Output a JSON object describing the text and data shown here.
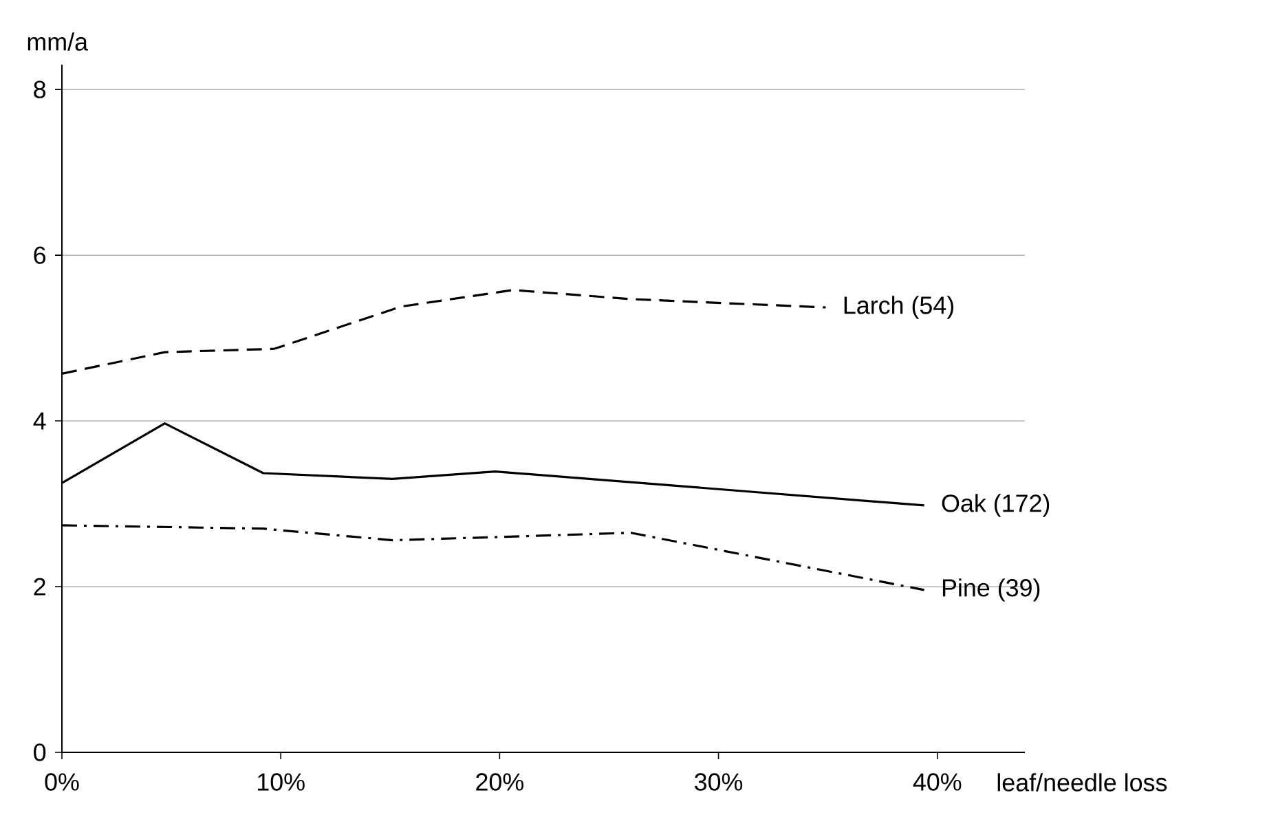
{
  "chart_data": {
    "type": "line",
    "xlabel": "leaf/needle loss",
    "ylabel": "mm/a",
    "xlim": [
      0,
      44
    ],
    "ylim": [
      0,
      8.3
    ],
    "xticks": [
      {
        "value": 0,
        "label": "0%"
      },
      {
        "value": 10,
        "label": "10%"
      },
      {
        "value": 20,
        "label": "20%"
      },
      {
        "value": 30,
        "label": "30%"
      },
      {
        "value": 40,
        "label": "40%"
      }
    ],
    "yticks": [
      0,
      2,
      4,
      6,
      8
    ],
    "grid": "y",
    "series": [
      {
        "name": "Larch (54)",
        "color": "#000000",
        "line_style": "dashed",
        "x": [
          0,
          4.7,
          9.7,
          15.5,
          20.6,
          26,
          34.9
        ],
        "values": [
          4.57,
          4.83,
          4.87,
          5.38,
          5.58,
          5.47,
          5.37
        ]
      },
      {
        "name": "Oak (172)",
        "color": "#000000",
        "line_style": "solid",
        "x": [
          0,
          4.7,
          9.2,
          15.1,
          19.8,
          39.4
        ],
        "values": [
          3.25,
          3.97,
          3.37,
          3.3,
          3.39,
          2.98
        ]
      },
      {
        "name": "Pine (39)",
        "color": "#000000",
        "line_style": "dashdot",
        "x": [
          0,
          9.2,
          15.1,
          20.1,
          26,
          39.4
        ],
        "values": [
          2.74,
          2.7,
          2.56,
          2.6,
          2.65,
          1.96
        ]
      }
    ]
  }
}
